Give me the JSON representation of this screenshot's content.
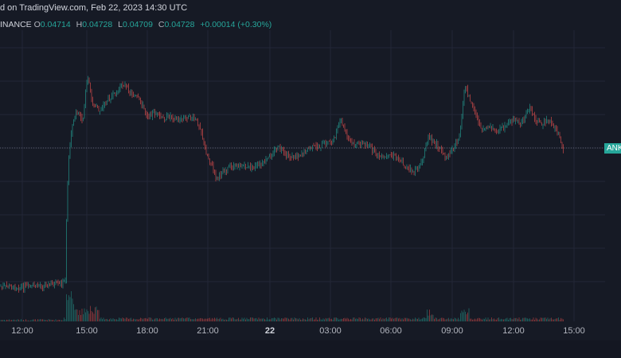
{
  "header": {
    "title": "d on TradingView.com, Feb 22, 2023 14:30 UTC"
  },
  "ohlc": {
    "exchange": "INANCE",
    "open_label": "O",
    "open": "0.04714",
    "high_label": "H",
    "high": "0.04728",
    "low_label": "L",
    "low": "0.04709",
    "close_label": "C",
    "close": "0.04728",
    "change": "+0.00014 (+0.30%)"
  },
  "price_tag": {
    "text": "ANK",
    "color": "#26a69a"
  },
  "time_axis": {
    "ticks": [
      "12:00",
      "15:00",
      "18:00",
      "21:00",
      "22",
      "03:00",
      "06:00",
      "09:00",
      "12:00",
      "15:00"
    ]
  },
  "colors": {
    "background": "#161a25",
    "grid": "#232736",
    "up": "#26a69a",
    "down": "#ef5350",
    "dotted_line": "#5d6170"
  },
  "chart_data": {
    "type": "candlestick",
    "x_ticks": [
      "12:00",
      "15:00",
      "18:00",
      "21:00",
      "22",
      "03:00",
      "06:00",
      "09:00",
      "12:00",
      "15:00"
    ],
    "last_close": 0.04728,
    "grid": true,
    "volume_pane": true
  }
}
